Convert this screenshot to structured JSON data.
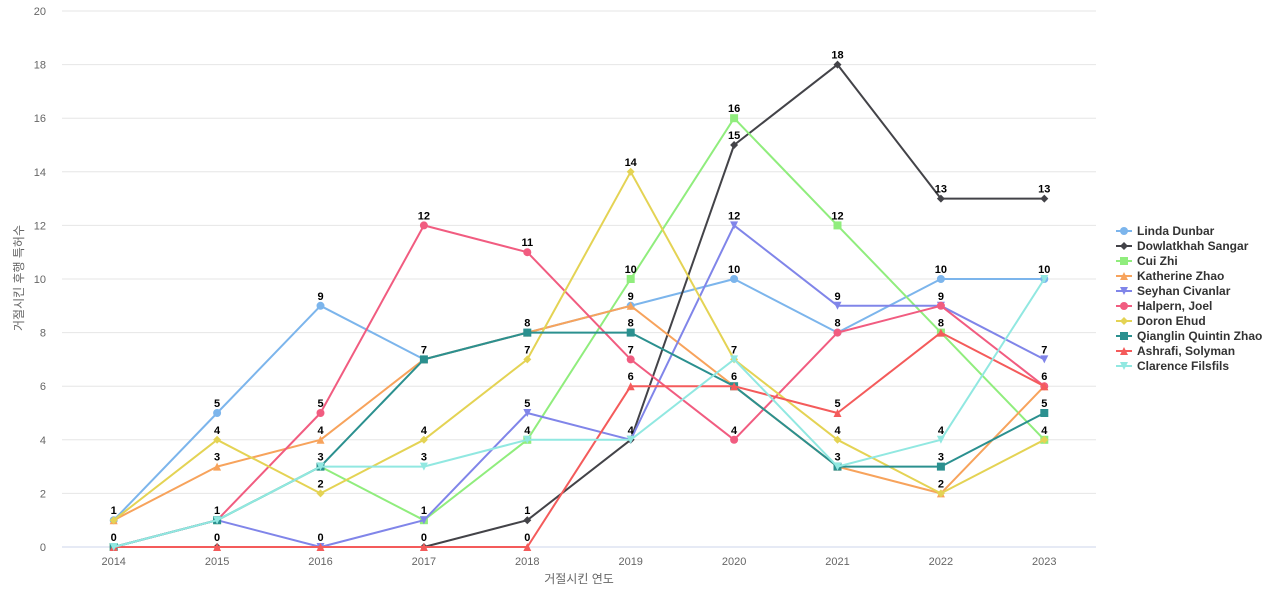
{
  "chart_data": {
    "type": "line",
    "title": "",
    "xlabel": "거절시킨 연도",
    "ylabel": "거절시킨 후행 특허수",
    "x": [
      2014,
      2015,
      2016,
      2017,
      2018,
      2019,
      2020,
      2021,
      2022,
      2023
    ],
    "ylim": [
      0,
      20
    ],
    "yticks": [
      0,
      2,
      4,
      6,
      8,
      10,
      12,
      14,
      16,
      18,
      20
    ],
    "grid": true,
    "legend_position": "right",
    "series": [
      {
        "name": "Linda Dunbar",
        "color": "#7cb5ec",
        "marker": "circle",
        "values": [
          1,
          5,
          9,
          7,
          8,
          9,
          10,
          8,
          10,
          10
        ]
      },
      {
        "name": "Dowlatkhah Sangar",
        "color": "#434348",
        "marker": "diamond",
        "values": [
          0,
          0,
          0,
          0,
          1,
          4,
          15,
          18,
          13,
          13
        ]
      },
      {
        "name": "Cui Zhi",
        "color": "#90ed7d",
        "marker": "square",
        "values": [
          0,
          1,
          3,
          1,
          4,
          10,
          16,
          12,
          8,
          4
        ]
      },
      {
        "name": "Katherine Zhao",
        "color": "#f7a35c",
        "marker": "triangle",
        "values": [
          1,
          3,
          4,
          7,
          8,
          9,
          6,
          3,
          2,
          6
        ]
      },
      {
        "name": "Seyhan Civanlar",
        "color": "#8085e9",
        "marker": "triangle-down",
        "values": [
          0,
          1,
          0,
          1,
          5,
          4,
          12,
          9,
          9,
          7
        ]
      },
      {
        "name": "Halpern, Joel",
        "color": "#f15c80",
        "marker": "circle",
        "values": [
          0,
          1,
          5,
          12,
          11,
          7,
          4,
          8,
          9,
          6
        ]
      },
      {
        "name": "Doron Ehud",
        "color": "#e4d354",
        "marker": "diamond",
        "values": [
          1,
          4,
          2,
          4,
          7,
          14,
          7,
          4,
          2,
          4
        ]
      },
      {
        "name": "Qianglin Quintin Zhao",
        "color": "#2b908f",
        "marker": "square",
        "values": [
          0,
          1,
          3,
          7,
          8,
          8,
          6,
          3,
          3,
          5
        ]
      },
      {
        "name": "Ashrafi, Solyman",
        "color": "#f45b5b",
        "marker": "triangle",
        "values": [
          0,
          0,
          0,
          0,
          0,
          6,
          6,
          5,
          8,
          6
        ]
      },
      {
        "name": "Clarence Filsfils",
        "color": "#91e8e1",
        "marker": "triangle-down",
        "values": [
          0,
          1,
          3,
          3,
          4,
          4,
          7,
          3,
          4,
          10
        ]
      }
    ],
    "data_labels": [
      {
        "x": 2014,
        "value": 1
      },
      {
        "x": 2014,
        "value": 0
      },
      {
        "x": 2015,
        "value": 5
      },
      {
        "x": 2015,
        "value": 4
      },
      {
        "x": 2015,
        "value": 3
      },
      {
        "x": 2015,
        "value": 1
      },
      {
        "x": 2015,
        "value": 0
      },
      {
        "x": 2016,
        "value": 9
      },
      {
        "x": 2016,
        "value": 5
      },
      {
        "x": 2016,
        "value": 4
      },
      {
        "x": 2016,
        "value": 3
      },
      {
        "x": 2016,
        "value": 2
      },
      {
        "x": 2016,
        "value": 0
      },
      {
        "x": 2017,
        "value": 12
      },
      {
        "x": 2017,
        "value": 7
      },
      {
        "x": 2017,
        "value": 4
      },
      {
        "x": 2017,
        "value": 3
      },
      {
        "x": 2017,
        "value": 1
      },
      {
        "x": 2017,
        "value": 0
      },
      {
        "x": 2018,
        "value": 11
      },
      {
        "x": 2018,
        "value": 8
      },
      {
        "x": 2018,
        "value": 7
      },
      {
        "x": 2018,
        "value": 5
      },
      {
        "x": 2018,
        "value": 4
      },
      {
        "x": 2018,
        "value": 1
      },
      {
        "x": 2018,
        "value": 0
      },
      {
        "x": 2019,
        "value": 14
      },
      {
        "x": 2019,
        "value": 10
      },
      {
        "x": 2019,
        "value": 9
      },
      {
        "x": 2019,
        "value": 8
      },
      {
        "x": 2019,
        "value": 7
      },
      {
        "x": 2019,
        "value": 6
      },
      {
        "x": 2019,
        "value": 4
      },
      {
        "x": 2020,
        "value": 16
      },
      {
        "x": 2020,
        "value": 15
      },
      {
        "x": 2020,
        "value": 12
      },
      {
        "x": 2020,
        "value": 10
      },
      {
        "x": 2020,
        "value": 7
      },
      {
        "x": 2020,
        "value": 6
      },
      {
        "x": 2020,
        "value": 4
      },
      {
        "x": 2021,
        "value": 18
      },
      {
        "x": 2021,
        "value": 12
      },
      {
        "x": 2021,
        "value": 9
      },
      {
        "x": 2021,
        "value": 8
      },
      {
        "x": 2021,
        "value": 5
      },
      {
        "x": 2021,
        "value": 4
      },
      {
        "x": 2021,
        "value": 3
      },
      {
        "x": 2022,
        "value": 13
      },
      {
        "x": 2022,
        "value": 10
      },
      {
        "x": 2022,
        "value": 9
      },
      {
        "x": 2022,
        "value": 8
      },
      {
        "x": 2022,
        "value": 4
      },
      {
        "x": 2022,
        "value": 3
      },
      {
        "x": 2022,
        "value": 2
      },
      {
        "x": 2023,
        "value": 13
      },
      {
        "x": 2023,
        "value": 10
      },
      {
        "x": 2023,
        "value": 7
      },
      {
        "x": 2023,
        "value": 6
      },
      {
        "x": 2023,
        "value": 5
      },
      {
        "x": 2023,
        "value": 4
      }
    ]
  }
}
